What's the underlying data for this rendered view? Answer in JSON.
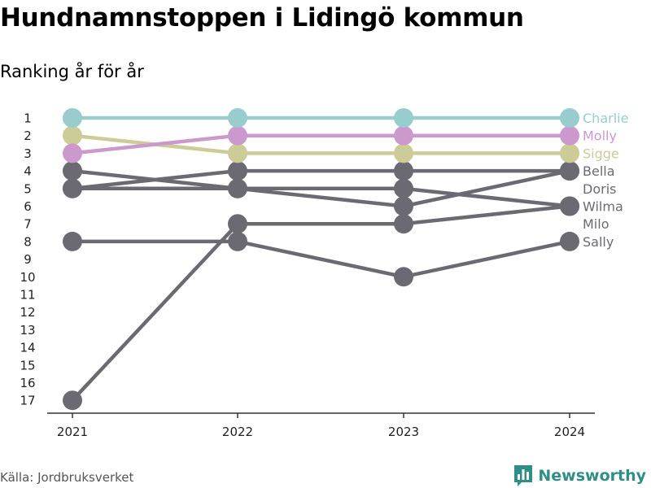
{
  "title": "Hundnamnstoppen i Lidingö kommun",
  "subtitle": "Ranking år för år",
  "source": "Källa: Jordbruksverket",
  "brand": {
    "name": "Newsworthy",
    "icon": "bar-chart-logo-icon",
    "color": "#2f8f86"
  },
  "chart_data": {
    "type": "line",
    "x": [
      "2021",
      "2022",
      "2023",
      "2024"
    ],
    "y_ticks": [
      1,
      2,
      3,
      4,
      5,
      6,
      7,
      8,
      9,
      10,
      11,
      12,
      13,
      14,
      15,
      16,
      17
    ],
    "y_reversed": true,
    "ylim": [
      1,
      17
    ],
    "grid": false,
    "series": [
      {
        "name": "Sally",
        "values": [
          8,
          8,
          10,
          8
        ],
        "color": "#6b6a72"
      },
      {
        "name": "Milo",
        "values": [
          17,
          7,
          7,
          6
        ],
        "color": "#6b6a72"
      },
      {
        "name": "Wilma",
        "values": [
          4,
          5,
          6,
          4
        ],
        "color": "#6b6a72"
      },
      {
        "name": "Doris",
        "values": [
          5,
          5,
          5,
          6
        ],
        "color": "#6b6a72"
      },
      {
        "name": "Bella",
        "values": [
          5,
          4,
          4,
          4
        ],
        "color": "#6b6a72"
      },
      {
        "name": "Sigge",
        "values": [
          2,
          3,
          3,
          3
        ],
        "color": "#cccc99"
      },
      {
        "name": "Molly",
        "values": [
          3,
          2,
          2,
          2
        ],
        "color": "#cc99cc"
      },
      {
        "name": "Charlie",
        "values": [
          1,
          1,
          1,
          1
        ],
        "color": "#99cccc"
      }
    ],
    "labels": [
      {
        "name": "Charlie",
        "rank": 1
      },
      {
        "name": "Molly",
        "rank": 2
      },
      {
        "name": "Sigge",
        "rank": 3
      },
      {
        "name": "Bella",
        "rank": 4
      },
      {
        "name": "Doris",
        "rank": 5
      },
      {
        "name": "Wilma",
        "rank": 6
      },
      {
        "name": "Milo",
        "rank": 7
      },
      {
        "name": "Sally",
        "rank": 8
      }
    ]
  }
}
